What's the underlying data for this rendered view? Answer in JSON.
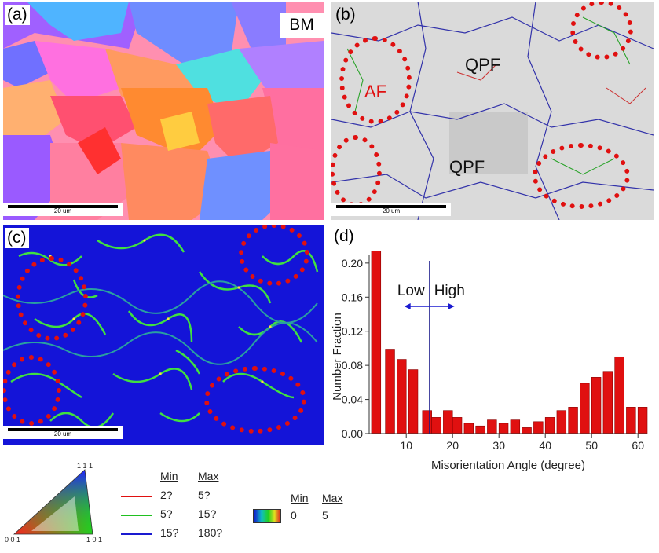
{
  "panels": {
    "a": {
      "label": "(a)",
      "tag": "BM",
      "scale": "20 um"
    },
    "b": {
      "label": "(b)",
      "scale": "20 um",
      "annotations": [
        "AF",
        "QPF",
        "QPF"
      ]
    },
    "c": {
      "label": "(c)",
      "scale": "20 um"
    },
    "d": {
      "label": "(d)"
    }
  },
  "chart_data": {
    "type": "bar",
    "xlabel": "Misorientation Angle (degree)",
    "ylabel": "Number Fraction",
    "xlim": [
      2,
      62
    ],
    "ylim": [
      0,
      0.21
    ],
    "xticks": [
      10,
      20,
      30,
      40,
      50,
      60
    ],
    "yticks": [
      0.0,
      0.04,
      0.08,
      0.12,
      0.16,
      0.2
    ],
    "ytick_labels": [
      "0.00",
      "0.04",
      "0.08",
      "0.12",
      "0.16",
      "0.20"
    ],
    "bar_color": "#e01010",
    "x": [
      3.5,
      6.5,
      9,
      11.5,
      14.5,
      16.5,
      19,
      21,
      23.5,
      26,
      28.5,
      31,
      33.5,
      36,
      38.5,
      41,
      43.5,
      46,
      48.5,
      51,
      53.5,
      56,
      58.5,
      61
    ],
    "values": [
      0.214,
      0.099,
      0.087,
      0.075,
      0.027,
      0.019,
      0.027,
      0.019,
      0.012,
      0.009,
      0.016,
      0.012,
      0.016,
      0.007,
      0.014,
      0.019,
      0.027,
      0.031,
      0.059,
      0.066,
      0.073,
      0.09,
      0.031,
      0.031
    ],
    "divider_x": 15,
    "divider_labels": {
      "left": "Low",
      "right": "High"
    }
  },
  "legend": {
    "triangle": {
      "top": "1 1 1",
      "left": "0 0 1",
      "right": "1 0 1"
    },
    "boundaries": {
      "headers": [
        "Min",
        "Max"
      ],
      "rows": [
        {
          "color": "#e01010",
          "min": "2?",
          "max": "5?"
        },
        {
          "color": "#20c020",
          "min": "5?",
          "max": "15?"
        },
        {
          "color": "#1a1ad0",
          "min": "15?",
          "max": "180?"
        }
      ]
    },
    "kam": {
      "headers": [
        "Min",
        "Max"
      ],
      "min": "0",
      "max": "5"
    }
  }
}
